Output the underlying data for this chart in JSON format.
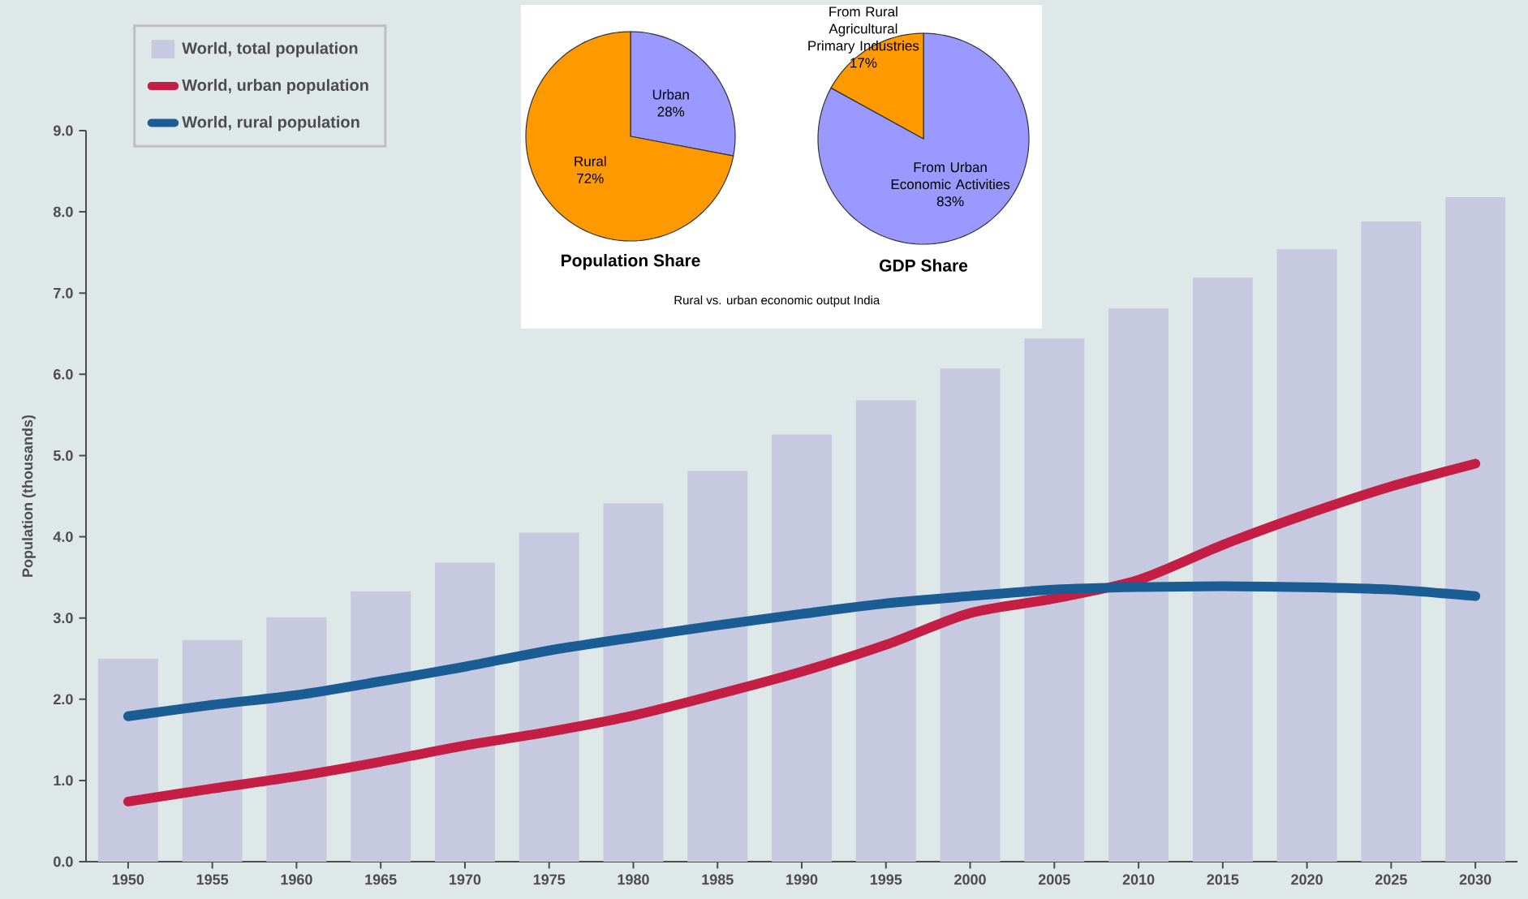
{
  "chart_data": [
    {
      "type": "bar",
      "ylabel": "Population (thousands)",
      "categories": [
        "1950",
        "1955",
        "1960",
        "1965",
        "1970",
        "1975",
        "1980",
        "1985",
        "1990",
        "1995",
        "2000",
        "2005",
        "2010",
        "2015",
        "2020",
        "2025",
        "2030"
      ],
      "series": [
        {
          "name": "World, total population",
          "type": "bar",
          "color": "#c6c9df",
          "values": [
            2.5,
            2.73,
            3.01,
            3.33,
            3.68,
            4.05,
            4.41,
            4.81,
            5.26,
            5.68,
            6.07,
            6.44,
            6.81,
            7.19,
            7.54,
            7.88,
            8.18
          ]
        },
        {
          "name": "World, urban population",
          "type": "line",
          "color": "#c41e45",
          "values": [
            0.74,
            0.9,
            1.05,
            1.23,
            1.43,
            1.6,
            1.8,
            2.06,
            2.34,
            2.67,
            3.06,
            3.24,
            3.47,
            3.9,
            4.28,
            4.62,
            4.9
          ]
        },
        {
          "name": "World, rural population",
          "type": "line",
          "color": "#1a5c94",
          "values": [
            1.79,
            1.93,
            2.05,
            2.22,
            2.4,
            2.6,
            2.76,
            2.91,
            3.05,
            3.18,
            3.27,
            3.35,
            3.38,
            3.39,
            3.38,
            3.35,
            3.27
          ]
        }
      ],
      "ylim": [
        0,
        9
      ],
      "yticks": [
        {
          "value": 0,
          "label": "0.0"
        },
        {
          "value": 1,
          "label": "1.0"
        },
        {
          "value": 2,
          "label": "2.0"
        },
        {
          "value": 3,
          "label": "3.0"
        },
        {
          "value": 4,
          "label": "4.0"
        },
        {
          "value": 5,
          "label": "5.0"
        },
        {
          "value": 6,
          "label": "6.0"
        },
        {
          "value": 7,
          "label": "7.0"
        },
        {
          "value": 8,
          "label": "8.0"
        },
        {
          "value": 9,
          "label": "9.0"
        }
      ],
      "legend": "top left"
    },
    {
      "type": "pie",
      "title": "Population Share",
      "categories": [
        "Urban",
        "Rural"
      ],
      "values": [
        28,
        72
      ],
      "colors": [
        "#9999ff",
        "#ff9900"
      ],
      "value_labels": [
        "28%",
        "72%"
      ]
    },
    {
      "type": "pie",
      "title": "GDP Share",
      "categories": [
        "From Urban Economic Activities",
        "From Rural Agricultural Primary Industries"
      ],
      "values": [
        83,
        17
      ],
      "colors": [
        "#9999ff",
        "#ff9900"
      ],
      "value_labels": [
        "83%",
        "17%"
      ],
      "annotations": [
        "Rural vs. urban economic output India"
      ]
    }
  ]
}
